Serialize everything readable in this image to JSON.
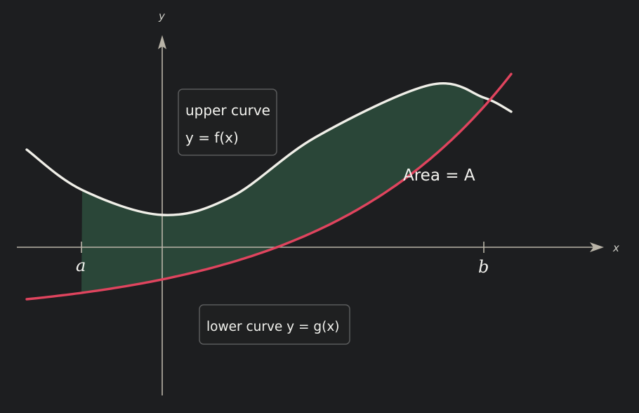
{
  "axes": {
    "x_label": "x",
    "y_label": "y"
  },
  "bounds": {
    "a_label": "a",
    "b_label": "b"
  },
  "upper_box": {
    "line1": "upper curve",
    "line2": "y = f(x)"
  },
  "lower_box": {
    "text": "lower curve y = g(x)"
  },
  "area_label": "Area = A",
  "colors": {
    "background": "#1d1e20",
    "axis": "#b9b4a8",
    "upper_curve": "#f0efe8",
    "lower_curve": "#e0445e",
    "fill": "#2a4638"
  }
}
